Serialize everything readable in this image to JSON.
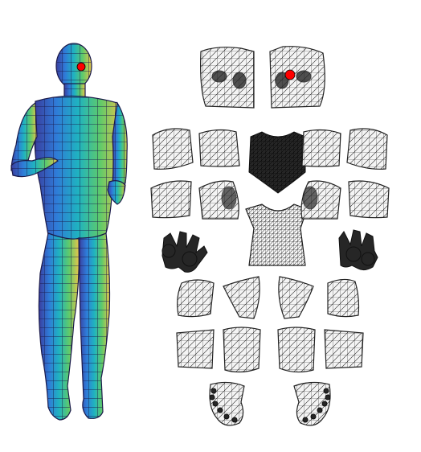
{
  "figure": {
    "body_colormap": [
      "#3a3d9e",
      "#2f7bd8",
      "#1fb3c0",
      "#5fca6a",
      "#e8c54a"
    ],
    "marker_color": "#ff0000",
    "mesh_stroke_color": "#222222",
    "dense_patch_color": "#262626"
  },
  "parts": {
    "body_model": {
      "icon": "human-body-mesh"
    },
    "head_patches": {
      "icon": "head-uv-patch"
    },
    "torso_patches": {
      "icon": "torso-uv-patch"
    },
    "arm_patches": {
      "icon": "arm-uv-patch"
    },
    "hand_patches": {
      "icon": "hand-uv-patch"
    },
    "leg_patches": {
      "icon": "leg-uv-patch"
    },
    "foot_patches": {
      "icon": "foot-uv-patch"
    }
  }
}
